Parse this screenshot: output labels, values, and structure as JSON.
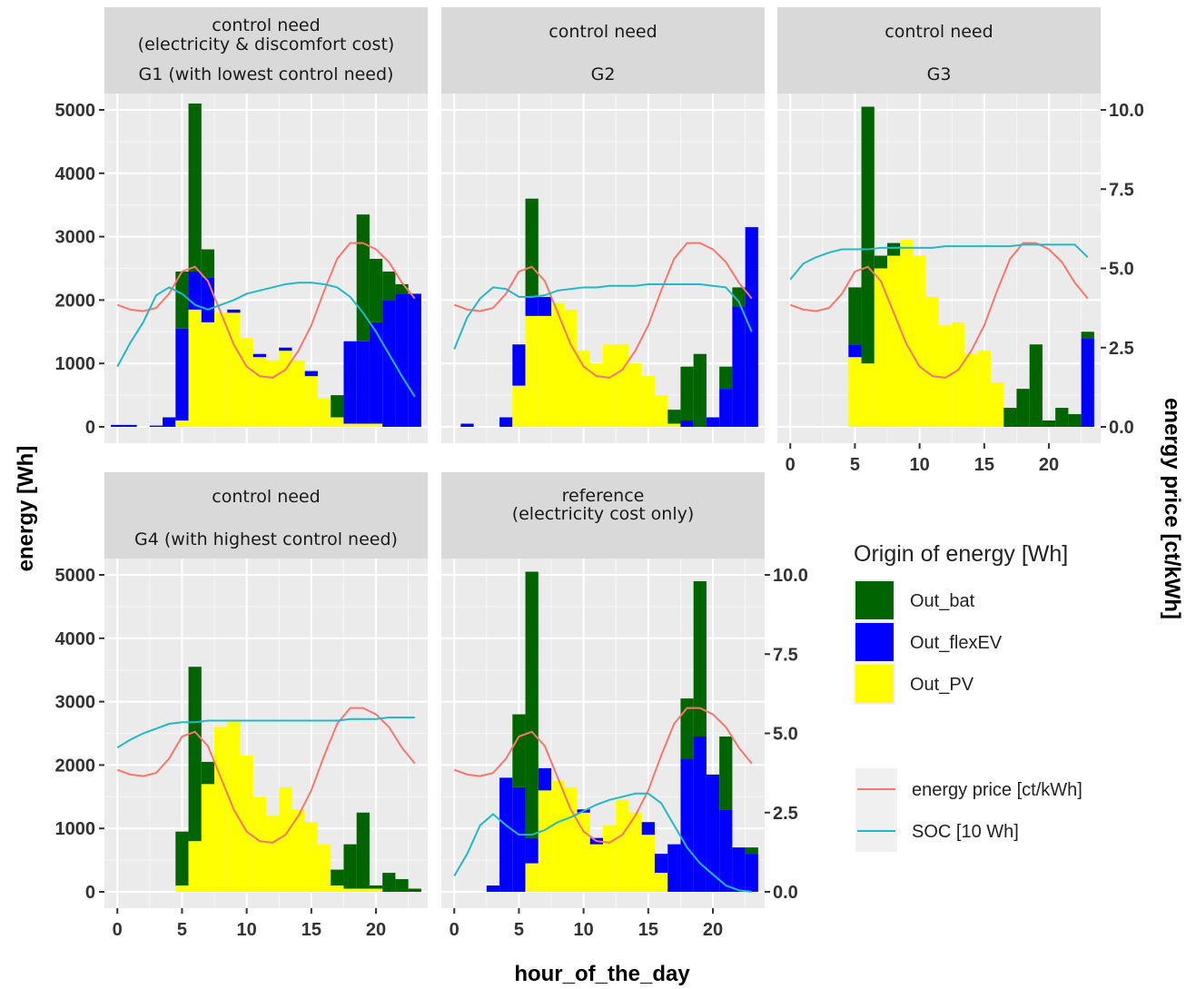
{
  "chart_data": {
    "type": "bar",
    "xlabel": "hour_of_the_day",
    "ylabel": "energy [Wh]",
    "ylabel_right": "energy price [ct/kWh]",
    "xlim": [
      -1,
      24
    ],
    "ylim": [
      0,
      5000
    ],
    "ylim_right": [
      0,
      10
    ],
    "x_ticks": [
      0,
      5,
      10,
      15,
      20
    ],
    "y_ticks": [
      0,
      1000,
      2000,
      3000,
      4000,
      5000
    ],
    "y_right_ticks": [
      "0.0",
      "2.5",
      "5.0",
      "7.5",
      "10.0"
    ],
    "y_right_tick_values": [
      0,
      2.5,
      5,
      7.5,
      10
    ],
    "bar_series": [
      {
        "name": "Out_bat",
        "color": "#006400"
      },
      {
        "name": "Out_flexEV",
        "color": "#0000ff"
      },
      {
        "name": "Out_PV",
        "color": "#ffff00"
      }
    ],
    "line_series": [
      {
        "name": "energy price [ct/kWh]",
        "color": "#f8766d"
      },
      {
        "name": "SOC [10 Wh]",
        "color": "#22b8c8"
      }
    ],
    "legend_title": "Origin of energy [Wh]",
    "legend_position": "right",
    "grid": true,
    "price": [
      3.85,
      3.7,
      3.65,
      3.75,
      4.2,
      4.9,
      5.05,
      4.6,
      3.6,
      2.6,
      1.9,
      1.6,
      1.55,
      1.8,
      2.4,
      3.2,
      4.3,
      5.3,
      5.8,
      5.8,
      5.6,
      5.2,
      4.55,
      4.05
    ],
    "panels": [
      {
        "strip": [
          "control need",
          "(electricity & discomfort cost)",
          "G1 (with lowest control need)"
        ],
        "pv": [
          0,
          0,
          0,
          0,
          0,
          100,
          1850,
          1650,
          1800,
          1800,
          1400,
          1100,
          1050,
          1200,
          1050,
          800,
          450,
          150,
          50,
          50,
          50,
          0,
          0,
          0
        ],
        "ev": [
          30,
          30,
          0,
          20,
          150,
          1450,
          600,
          700,
          0,
          50,
          0,
          50,
          0,
          50,
          0,
          80,
          0,
          0,
          1300,
          1300,
          1600,
          2000,
          2100,
          2100
        ],
        "bat": [
          0,
          0,
          0,
          0,
          0,
          900,
          2650,
          450,
          0,
          0,
          0,
          0,
          0,
          0,
          0,
          0,
          0,
          350,
          0,
          2000,
          1000,
          450,
          150,
          0
        ],
        "soc": [
          1.9,
          2.65,
          3.3,
          4.15,
          4.4,
          4.2,
          3.85,
          3.7,
          3.85,
          4.0,
          4.2,
          4.3,
          4.4,
          4.5,
          4.55,
          4.55,
          4.5,
          4.4,
          4.1,
          3.6,
          3.0,
          2.3,
          1.6,
          0.95
        ]
      },
      {
        "strip": [
          "control need",
          "G2"
        ],
        "pv": [
          0,
          0,
          0,
          0,
          0,
          650,
          1750,
          1750,
          1950,
          1850,
          1200,
          1000,
          1300,
          1300,
          1000,
          800,
          500,
          50,
          0,
          0,
          0,
          0,
          0,
          0
        ],
        "ev": [
          0,
          50,
          0,
          0,
          150,
          650,
          300,
          300,
          0,
          0,
          0,
          0,
          0,
          0,
          0,
          0,
          0,
          0,
          100,
          0,
          150,
          600,
          1900,
          3150
        ],
        "bat": [
          0,
          0,
          0,
          0,
          0,
          0,
          1550,
          0,
          0,
          0,
          0,
          0,
          0,
          0,
          0,
          0,
          0,
          220,
          850,
          1150,
          0,
          350,
          300,
          0
        ],
        "soc": [
          2.45,
          3.45,
          4.05,
          4.4,
          4.35,
          4.1,
          4.1,
          4.15,
          4.3,
          4.35,
          4.4,
          4.4,
          4.45,
          4.45,
          4.45,
          4.5,
          4.5,
          4.5,
          4.5,
          4.5,
          4.45,
          4.4,
          3.95,
          3.0
        ]
      },
      {
        "strip": [
          "control need",
          "G3"
        ],
        "pv": [
          0,
          0,
          0,
          0,
          0,
          1100,
          1000,
          2500,
          2700,
          2950,
          2700,
          2050,
          1600,
          1650,
          1150,
          1200,
          700,
          0,
          0,
          0,
          0,
          0,
          0,
          0
        ],
        "ev": [
          0,
          0,
          0,
          0,
          0,
          200,
          0,
          0,
          0,
          0,
          0,
          0,
          0,
          0,
          0,
          0,
          0,
          0,
          0,
          0,
          0,
          0,
          0,
          1400
        ],
        "bat": [
          0,
          0,
          0,
          0,
          0,
          900,
          4050,
          200,
          200,
          0,
          0,
          0,
          0,
          0,
          0,
          0,
          0,
          300,
          600,
          1300,
          100,
          300,
          200,
          100
        ],
        "soc": [
          4.65,
          5.15,
          5.35,
          5.5,
          5.6,
          5.6,
          5.6,
          5.65,
          5.65,
          5.65,
          5.65,
          5.65,
          5.7,
          5.7,
          5.7,
          5.7,
          5.7,
          5.7,
          5.75,
          5.75,
          5.75,
          5.75,
          5.75,
          5.35
        ]
      },
      {
        "strip": [
          "control need",
          "G4 (with highest control need)"
        ],
        "pv": [
          0,
          0,
          0,
          0,
          0,
          100,
          800,
          1700,
          2600,
          2700,
          2150,
          1500,
          1200,
          1650,
          1300,
          1100,
          750,
          100,
          50,
          50,
          50,
          0,
          0,
          0
        ],
        "ev": [
          0,
          0,
          0,
          0,
          0,
          0,
          0,
          0,
          0,
          0,
          0,
          0,
          0,
          0,
          0,
          0,
          0,
          0,
          0,
          0,
          0,
          0,
          0,
          0
        ],
        "bat": [
          0,
          0,
          0,
          0,
          0,
          850,
          2750,
          350,
          0,
          0,
          0,
          0,
          0,
          0,
          0,
          0,
          0,
          250,
          700,
          1200,
          50,
          300,
          200,
          50
        ],
        "soc": [
          4.55,
          4.8,
          5.0,
          5.15,
          5.3,
          5.35,
          5.35,
          5.4,
          5.4,
          5.4,
          5.4,
          5.4,
          5.4,
          5.4,
          5.4,
          5.4,
          5.4,
          5.4,
          5.45,
          5.45,
          5.45,
          5.5,
          5.5,
          5.5
        ]
      },
      {
        "strip": [
          "reference",
          "(electricity cost only)"
        ],
        "pv": [
          0,
          0,
          0,
          0,
          0,
          0,
          450,
          1600,
          1750,
          1650,
          1250,
          750,
          1050,
          1450,
          1250,
          900,
          300,
          0,
          0,
          0,
          0,
          0,
          0,
          0
        ],
        "ev": [
          0,
          0,
          0,
          100,
          1800,
          1650,
          400,
          350,
          0,
          0,
          50,
          100,
          0,
          0,
          0,
          200,
          300,
          750,
          2100,
          2450,
          1850,
          1300,
          700,
          600
        ],
        "bat": [
          0,
          0,
          0,
          0,
          0,
          1150,
          4200,
          0,
          0,
          0,
          0,
          0,
          0,
          0,
          0,
          0,
          0,
          0,
          950,
          2450,
          0,
          1150,
          0,
          100
        ],
        "soc": [
          0.5,
          1.2,
          2.1,
          2.45,
          2.1,
          1.8,
          1.8,
          1.95,
          2.2,
          2.35,
          2.55,
          2.75,
          2.9,
          3.0,
          3.1,
          3.1,
          2.8,
          2.1,
          1.4,
          0.9,
          0.55,
          0.2,
          0.05,
          0.0
        ]
      }
    ]
  }
}
